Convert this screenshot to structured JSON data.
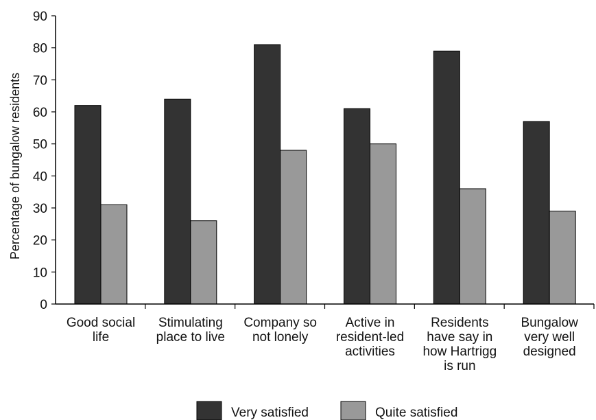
{
  "chart_data": {
    "type": "bar",
    "title": "",
    "xlabel": "",
    "ylabel": "Percentage of bungalow residents",
    "ylim": [
      0,
      90
    ],
    "yticks": [
      0,
      10,
      20,
      30,
      40,
      50,
      60,
      70,
      80,
      90
    ],
    "grid": false,
    "legend_position": "bottom",
    "categories": [
      [
        "Good social",
        "life"
      ],
      [
        "Stimulating",
        "place to live"
      ],
      [
        "Company so",
        "not lonely"
      ],
      [
        "Active in",
        "resident-led",
        "activities"
      ],
      [
        "Residents",
        "have say in",
        "how Hartrigg",
        "is run"
      ],
      [
        "Bungalow",
        "very well",
        "designed"
      ]
    ],
    "series": [
      {
        "name": "Very satisfied",
        "color": "#333333",
        "values": [
          62,
          64,
          81,
          61,
          79,
          57
        ]
      },
      {
        "name": "Quite satisfied",
        "color": "#999999",
        "values": [
          31,
          26,
          48,
          50,
          36,
          29
        ]
      }
    ]
  }
}
